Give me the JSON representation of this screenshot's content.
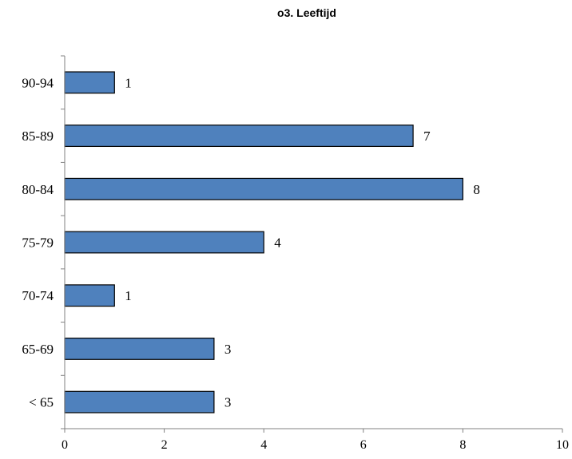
{
  "chart_data": {
    "type": "bar",
    "orientation": "horizontal",
    "title": "o3. Leeftijd",
    "xlabel": "",
    "ylabel": "",
    "categories": [
      "< 65",
      "65-69",
      "70-74",
      "75-79",
      "80-84",
      "85-89",
      "90-94"
    ],
    "values": [
      3,
      3,
      1,
      4,
      8,
      7,
      1
    ],
    "xlim": [
      0,
      10
    ],
    "x_ticks": [
      "0",
      "2",
      "4",
      "6",
      "8",
      "10"
    ],
    "data_labels": [
      "3",
      "3",
      "1",
      "4",
      "8",
      "7",
      "1"
    ],
    "grid": false,
    "legend": "none",
    "bar_color": "#4f81bd",
    "bar_edge_color": "#000000"
  }
}
